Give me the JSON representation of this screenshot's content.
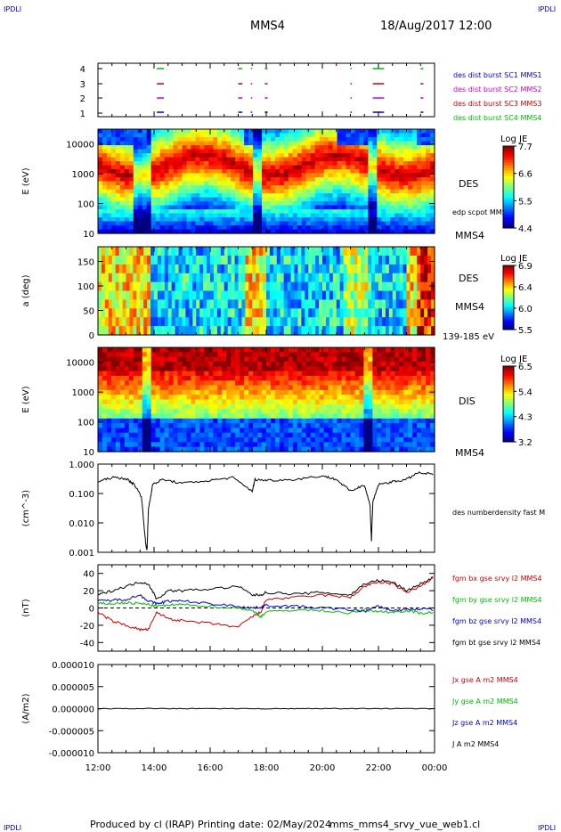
{
  "header": {
    "corner_tl": "IPDLI",
    "corner_tr": "IPDLI",
    "corner_bl": "IPDLI",
    "corner_br": "IPDLI",
    "spacecraft": "MMS4",
    "date": "18/Aug/2017 12:00"
  },
  "footer": {
    "produced_by": "Produced by cl (IRAP)",
    "printing_date": "Printing date: 02/May/2024",
    "script": "mms_mms4_srvy_vue_web1.cl"
  },
  "colors": {
    "blue": "#0000cc",
    "magenta": "#cc00cc",
    "red": "#cc0000",
    "green": "#00bb00",
    "black": "#000000"
  },
  "chart_data": [
    {
      "type": "table",
      "id": "burst",
      "yticks": [
        "1",
        "2",
        "3",
        "4"
      ],
      "legend": [
        {
          "label": "des dist burst SC1 MMS1",
          "color": "#0000cc"
        },
        {
          "label": "des dist burst SC2 MMS2",
          "color": "#cc00cc"
        },
        {
          "label": "des dist burst SC3 MMS3",
          "color": "#cc0000"
        },
        {
          "label": "des dist burst SC4 MMS4",
          "color": "#00bb00"
        }
      ],
      "segments_hours": [
        [
          14.1,
          14.35
        ],
        [
          17.0,
          17.15
        ],
        [
          17.45,
          17.5
        ],
        [
          17.95,
          18.05
        ],
        [
          21.0,
          21.05
        ],
        [
          21.8,
          22.2
        ],
        [
          23.5,
          23.6
        ]
      ]
    },
    {
      "type": "heatmap",
      "id": "des_energy",
      "ylabel": "E (eV)",
      "yticks": [
        "10",
        "100",
        "1000",
        "10000"
      ],
      "name": "DES",
      "sc": "MMS4",
      "annotation": "edp scpot MMS4",
      "colorbar": {
        "title": "Log JE",
        "ticks": [
          "7.7",
          "6.6",
          "5.5",
          "4.4"
        ]
      }
    },
    {
      "type": "heatmap",
      "id": "des_pitch",
      "ylabel": "a (deg)",
      "yticks": [
        "0",
        "50",
        "100",
        "150"
      ],
      "name": "DES",
      "sc": "MMS4",
      "energy_range": "139-185 eV",
      "colorbar": {
        "title": "Log JE",
        "ticks": [
          "6.9",
          "6.4",
          "6.0",
          "5.5"
        ]
      }
    },
    {
      "type": "heatmap",
      "id": "dis_energy",
      "ylabel": "E (eV)",
      "yticks": [
        "10",
        "100",
        "1000",
        "10000"
      ],
      "name": "DIS",
      "sc": "MMS4",
      "colorbar": {
        "title": "Log JE",
        "ticks": [
          "6.5",
          "5.4",
          "4.3",
          "3.2"
        ]
      }
    },
    {
      "type": "line",
      "id": "density",
      "ylabel": "(cm^-3)",
      "yticks": [
        "0.001",
        "0.010",
        "0.100",
        "1.000"
      ],
      "ylim": [
        0.001,
        1.0
      ],
      "log": true,
      "legend": [
        {
          "label": "des numberdensity fast M",
          "color": "#000000"
        }
      ],
      "x_hours": [
        12.0,
        12.5,
        13.0,
        13.3,
        13.55,
        13.7,
        13.75,
        13.8,
        13.95,
        14.3,
        15.0,
        16.0,
        16.8,
        17.5,
        17.6,
        18.0,
        19.0,
        20.0,
        20.5,
        21.0,
        21.5,
        21.7,
        21.75,
        21.8,
        22.0,
        22.5,
        23.0,
        23.4,
        24.0
      ],
      "values": [
        0.25,
        0.35,
        0.32,
        0.2,
        0.08,
        0.002,
        0.0012,
        0.03,
        0.2,
        0.3,
        0.22,
        0.28,
        0.35,
        0.12,
        0.3,
        0.28,
        0.3,
        0.4,
        0.3,
        0.12,
        0.2,
        0.04,
        0.0025,
        0.05,
        0.2,
        0.25,
        0.3,
        0.5,
        0.45
      ]
    },
    {
      "type": "line",
      "id": "bfield",
      "ylabel": "(nT)",
      "yticks": [
        "-40",
        "-20",
        "0",
        "20",
        "40"
      ],
      "ylim": [
        -50,
        50
      ],
      "x_hours": [
        12.0,
        12.5,
        13.0,
        13.5,
        13.8,
        14.1,
        14.5,
        15.0,
        16.0,
        17.0,
        17.5,
        17.8,
        18.0,
        19.0,
        20.0,
        21.0,
        21.5,
        22.0,
        22.5,
        23.0,
        23.5,
        24.0
      ],
      "series": [
        {
          "name": "fgm bx gse srvy l2 MMS4",
          "color": "#cc0000",
          "values": [
            -5,
            -15,
            -20,
            -25,
            -25,
            -5,
            -12,
            -15,
            -18,
            -22,
            -10,
            -5,
            10,
            12,
            15,
            12,
            25,
            30,
            28,
            18,
            25,
            35
          ]
        },
        {
          "name": "fgm by gse srvy l2 MMS4",
          "color": "#00bb00",
          "values": [
            5,
            5,
            6,
            5,
            4,
            2,
            3,
            4,
            2,
            0,
            -3,
            -10,
            -5,
            -2,
            -3,
            -6,
            -2,
            -4,
            -5,
            -3,
            -6,
            -5
          ]
        },
        {
          "name": "fgm bz gse srvy l2 MMS4",
          "color": "#0000cc",
          "values": [
            8,
            9,
            10,
            15,
            8,
            5,
            8,
            8,
            5,
            2,
            0,
            1,
            3,
            2,
            0,
            -2,
            -4,
            2,
            -3,
            -2,
            -1,
            -2
          ]
        },
        {
          "name": "fgm bt gse srvy l2 MMS4",
          "color": "#000000",
          "values": [
            15,
            20,
            25,
            30,
            28,
            10,
            20,
            20,
            22,
            25,
            15,
            15,
            18,
            16,
            18,
            15,
            28,
            32,
            30,
            20,
            28,
            36
          ]
        }
      ]
    },
    {
      "type": "line",
      "id": "current",
      "ylabel": "(A/m2)",
      "yticks": [
        "-0.000010",
        "-0.000005",
        "0.000000",
        "0.000005",
        "0.000010"
      ],
      "ylim": [
        -1e-05,
        1e-05
      ],
      "series": [
        {
          "name": "Jx gse A m2 MMS4",
          "color": "#cc0000"
        },
        {
          "name": "Jy gse A m2 MMS4",
          "color": "#00bb00"
        },
        {
          "name": "Jz gse A m2 MMS4",
          "color": "#0000cc"
        },
        {
          "name": "J A m2 MMS4",
          "color": "#000000"
        }
      ]
    }
  ],
  "xaxis": {
    "ticks": [
      "12:00",
      "14:00",
      "16:00",
      "18:00",
      "20:00",
      "22:00",
      "00:00"
    ],
    "range_hours": [
      12,
      24
    ]
  }
}
